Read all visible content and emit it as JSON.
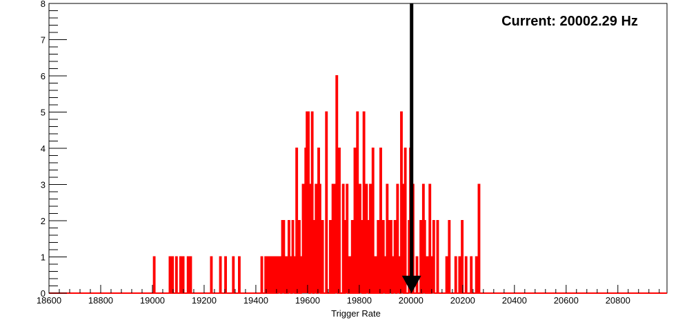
{
  "chart_data": {
    "type": "histogram",
    "xlabel": "Trigger Rate",
    "ylabel": "",
    "title": "",
    "annotation": "Current: 20002.29 Hz",
    "current_value": 20002.29,
    "xlim": [
      18600,
      20990
    ],
    "ylim": [
      0,
      8
    ],
    "x_ticks": [
      18600,
      18800,
      19000,
      19200,
      19400,
      19600,
      19800,
      20000,
      20200,
      20400,
      20600,
      20800
    ],
    "x_tick_labels": [
      "18600",
      "18800",
      "19000",
      "19200",
      "19400",
      "19600",
      "19800",
      "20000",
      "20200",
      "20400",
      "20600",
      "20800"
    ],
    "y_ticks": [
      0,
      1,
      2,
      3,
      4,
      5,
      6,
      7,
      8
    ],
    "y_tick_labels": [
      "0",
      "1",
      "2",
      "3",
      "4",
      "5",
      "6",
      "7",
      "8"
    ],
    "line_color": "#ff0000",
    "arrow_color": "#000000",
    "grid": false,
    "bin_width": 5,
    "bin_centers": [
      19007,
      19068,
      19078,
      19093,
      19109,
      19119,
      19138,
      19148,
      19228,
      19263,
      19283,
      19313,
      19336,
      19423,
      19438,
      19448,
      19458,
      19468,
      19478,
      19488,
      19493,
      19503,
      19508,
      19518,
      19528,
      19533,
      19543,
      19548,
      19558,
      19568,
      19578,
      19583,
      19588,
      19593,
      19598,
      19603,
      19613,
      19618,
      19628,
      19633,
      19643,
      19648,
      19658,
      19673,
      19688,
      19698,
      19708,
      19713,
      19723,
      19738,
      19748,
      19753,
      19763,
      19773,
      19783,
      19793,
      19803,
      19808,
      19818,
      19828,
      19833,
      19843,
      19853,
      19863,
      19873,
      19883,
      19893,
      19898,
      19908,
      19918,
      19923,
      19933,
      19938,
      19948,
      19953,
      19963,
      19968,
      19978,
      19993,
      19998,
      20008,
      20023,
      20038,
      20048,
      20053,
      20063,
      20073,
      20083,
      20088,
      20103,
      20138,
      20148,
      20173,
      20188,
      20198,
      20213,
      20233,
      20253,
      20263
    ],
    "bin_counts": [
      1,
      1,
      1,
      1,
      1,
      1,
      1,
      1,
      1,
      1,
      1,
      1,
      1,
      1,
      1,
      1,
      1,
      1,
      1,
      1,
      1,
      2,
      2,
      1,
      2,
      1,
      2,
      1,
      4,
      2,
      1,
      3,
      2,
      4,
      5,
      5,
      3,
      5,
      2,
      3,
      4,
      3,
      2,
      5,
      2,
      3,
      3,
      6,
      4,
      3,
      2,
      3,
      1,
      2,
      4,
      5,
      3,
      2,
      5,
      3,
      2,
      3,
      4,
      1,
      2,
      4,
      2,
      1,
      3,
      2,
      2,
      1,
      2,
      3,
      1,
      5,
      3,
      4,
      2,
      4,
      3,
      1,
      2,
      3,
      2,
      1,
      3,
      1,
      2,
      2,
      1,
      2,
      1,
      1,
      2,
      1,
      1,
      1,
      3
    ]
  }
}
